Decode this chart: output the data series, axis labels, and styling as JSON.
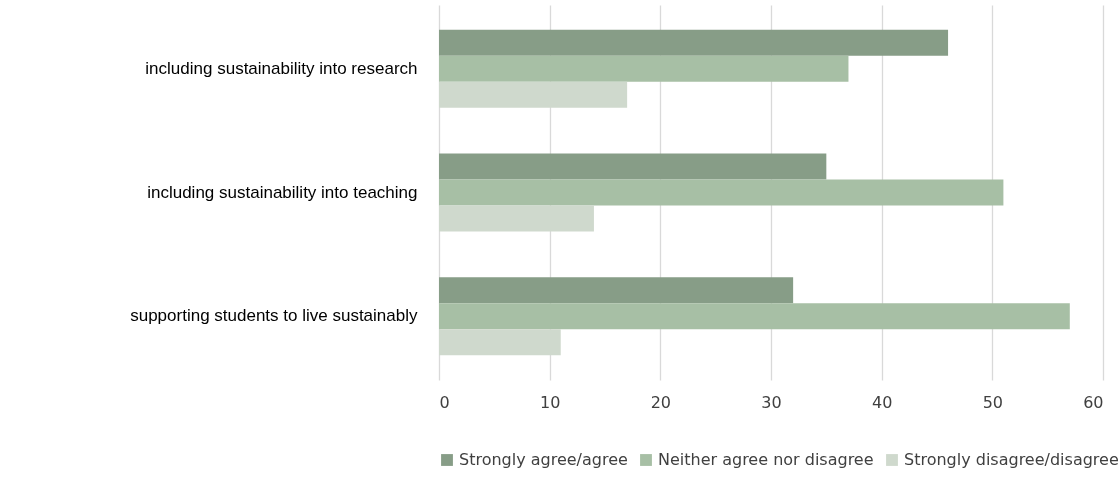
{
  "chart_data": {
    "type": "bar",
    "orientation": "horizontal",
    "categories": [
      "including sustainability into research",
      "including sustainability into teaching",
      "supporting students to live sustainably"
    ],
    "series": [
      {
        "name": "Strongly agree/agree",
        "color": "#879d87",
        "values": [
          46,
          35,
          32
        ]
      },
      {
        "name": "Neither agree nor disagree",
        "color": "#a7bfa5",
        "values": [
          37,
          51,
          57
        ]
      },
      {
        "name": "Strongly disagree/disagree",
        "color": "#cfd9cd",
        "values": [
          17,
          14,
          11
        ]
      }
    ],
    "xlim": [
      0,
      60
    ],
    "xticks": [
      0,
      10,
      20,
      30,
      40,
      50,
      60
    ],
    "grid": "x",
    "legend": "bottom"
  }
}
